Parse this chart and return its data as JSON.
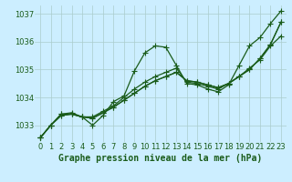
{
  "title": "Graphe pression niveau de la mer (hPa)",
  "background_color": "#cceeff",
  "grid_color": "#aacccc",
  "line_color": "#1a5c1a",
  "xlim": [
    -0.5,
    23.5
  ],
  "ylim": [
    1032.4,
    1037.3
  ],
  "xticks": [
    0,
    1,
    2,
    3,
    4,
    5,
    6,
    7,
    8,
    9,
    10,
    11,
    12,
    13,
    14,
    15,
    16,
    17,
    18,
    19,
    20,
    21,
    22,
    23
  ],
  "ytick_vals": [
    1033,
    1034,
    1035,
    1036,
    1037
  ],
  "ytick_labels": [
    "1033",
    "1034",
    "1035",
    "1036",
    "1037"
  ],
  "series": [
    [
      1032.55,
      1033.0,
      1033.4,
      1033.4,
      1033.3,
      1033.0,
      1033.35,
      1033.85,
      1034.05,
      1034.95,
      1035.6,
      1035.85,
      1035.8,
      1035.15,
      1034.5,
      1034.45,
      1034.3,
      1034.2,
      1034.45,
      1035.15,
      1035.85,
      1036.15,
      1036.65,
      1037.1
    ],
    [
      1032.55,
      1033.0,
      1033.4,
      1033.45,
      1033.3,
      1033.3,
      1033.5,
      1033.7,
      1034.0,
      1034.3,
      1034.55,
      1034.75,
      1034.9,
      1035.05,
      1034.55,
      1034.5,
      1034.4,
      1034.3,
      1034.5,
      1034.75,
      1035.05,
      1035.35,
      1035.85,
      1036.2
    ],
    [
      1032.55,
      1033.0,
      1033.35,
      1033.4,
      1033.3,
      1033.25,
      1033.45,
      1033.65,
      1033.9,
      1034.15,
      1034.4,
      1034.6,
      1034.75,
      1034.9,
      1034.6,
      1034.55,
      1034.45,
      1034.35,
      1034.5,
      1034.75,
      1035.0,
      1035.4,
      1035.9,
      1036.7
    ],
    [
      1032.55,
      1033.0,
      1033.35,
      1033.4,
      1033.3,
      1033.25,
      1033.45,
      1033.65,
      1033.9,
      1034.15,
      1034.4,
      1034.6,
      1034.75,
      1034.9,
      1034.6,
      1034.55,
      1034.45,
      1034.35,
      1034.5,
      1034.75,
      1035.0,
      1035.4,
      1035.9,
      1036.7
    ]
  ],
  "marker": "+",
  "marker_size": 4,
  "linewidth": 0.9,
  "title_fontsize": 7,
  "tick_fontsize": 6
}
